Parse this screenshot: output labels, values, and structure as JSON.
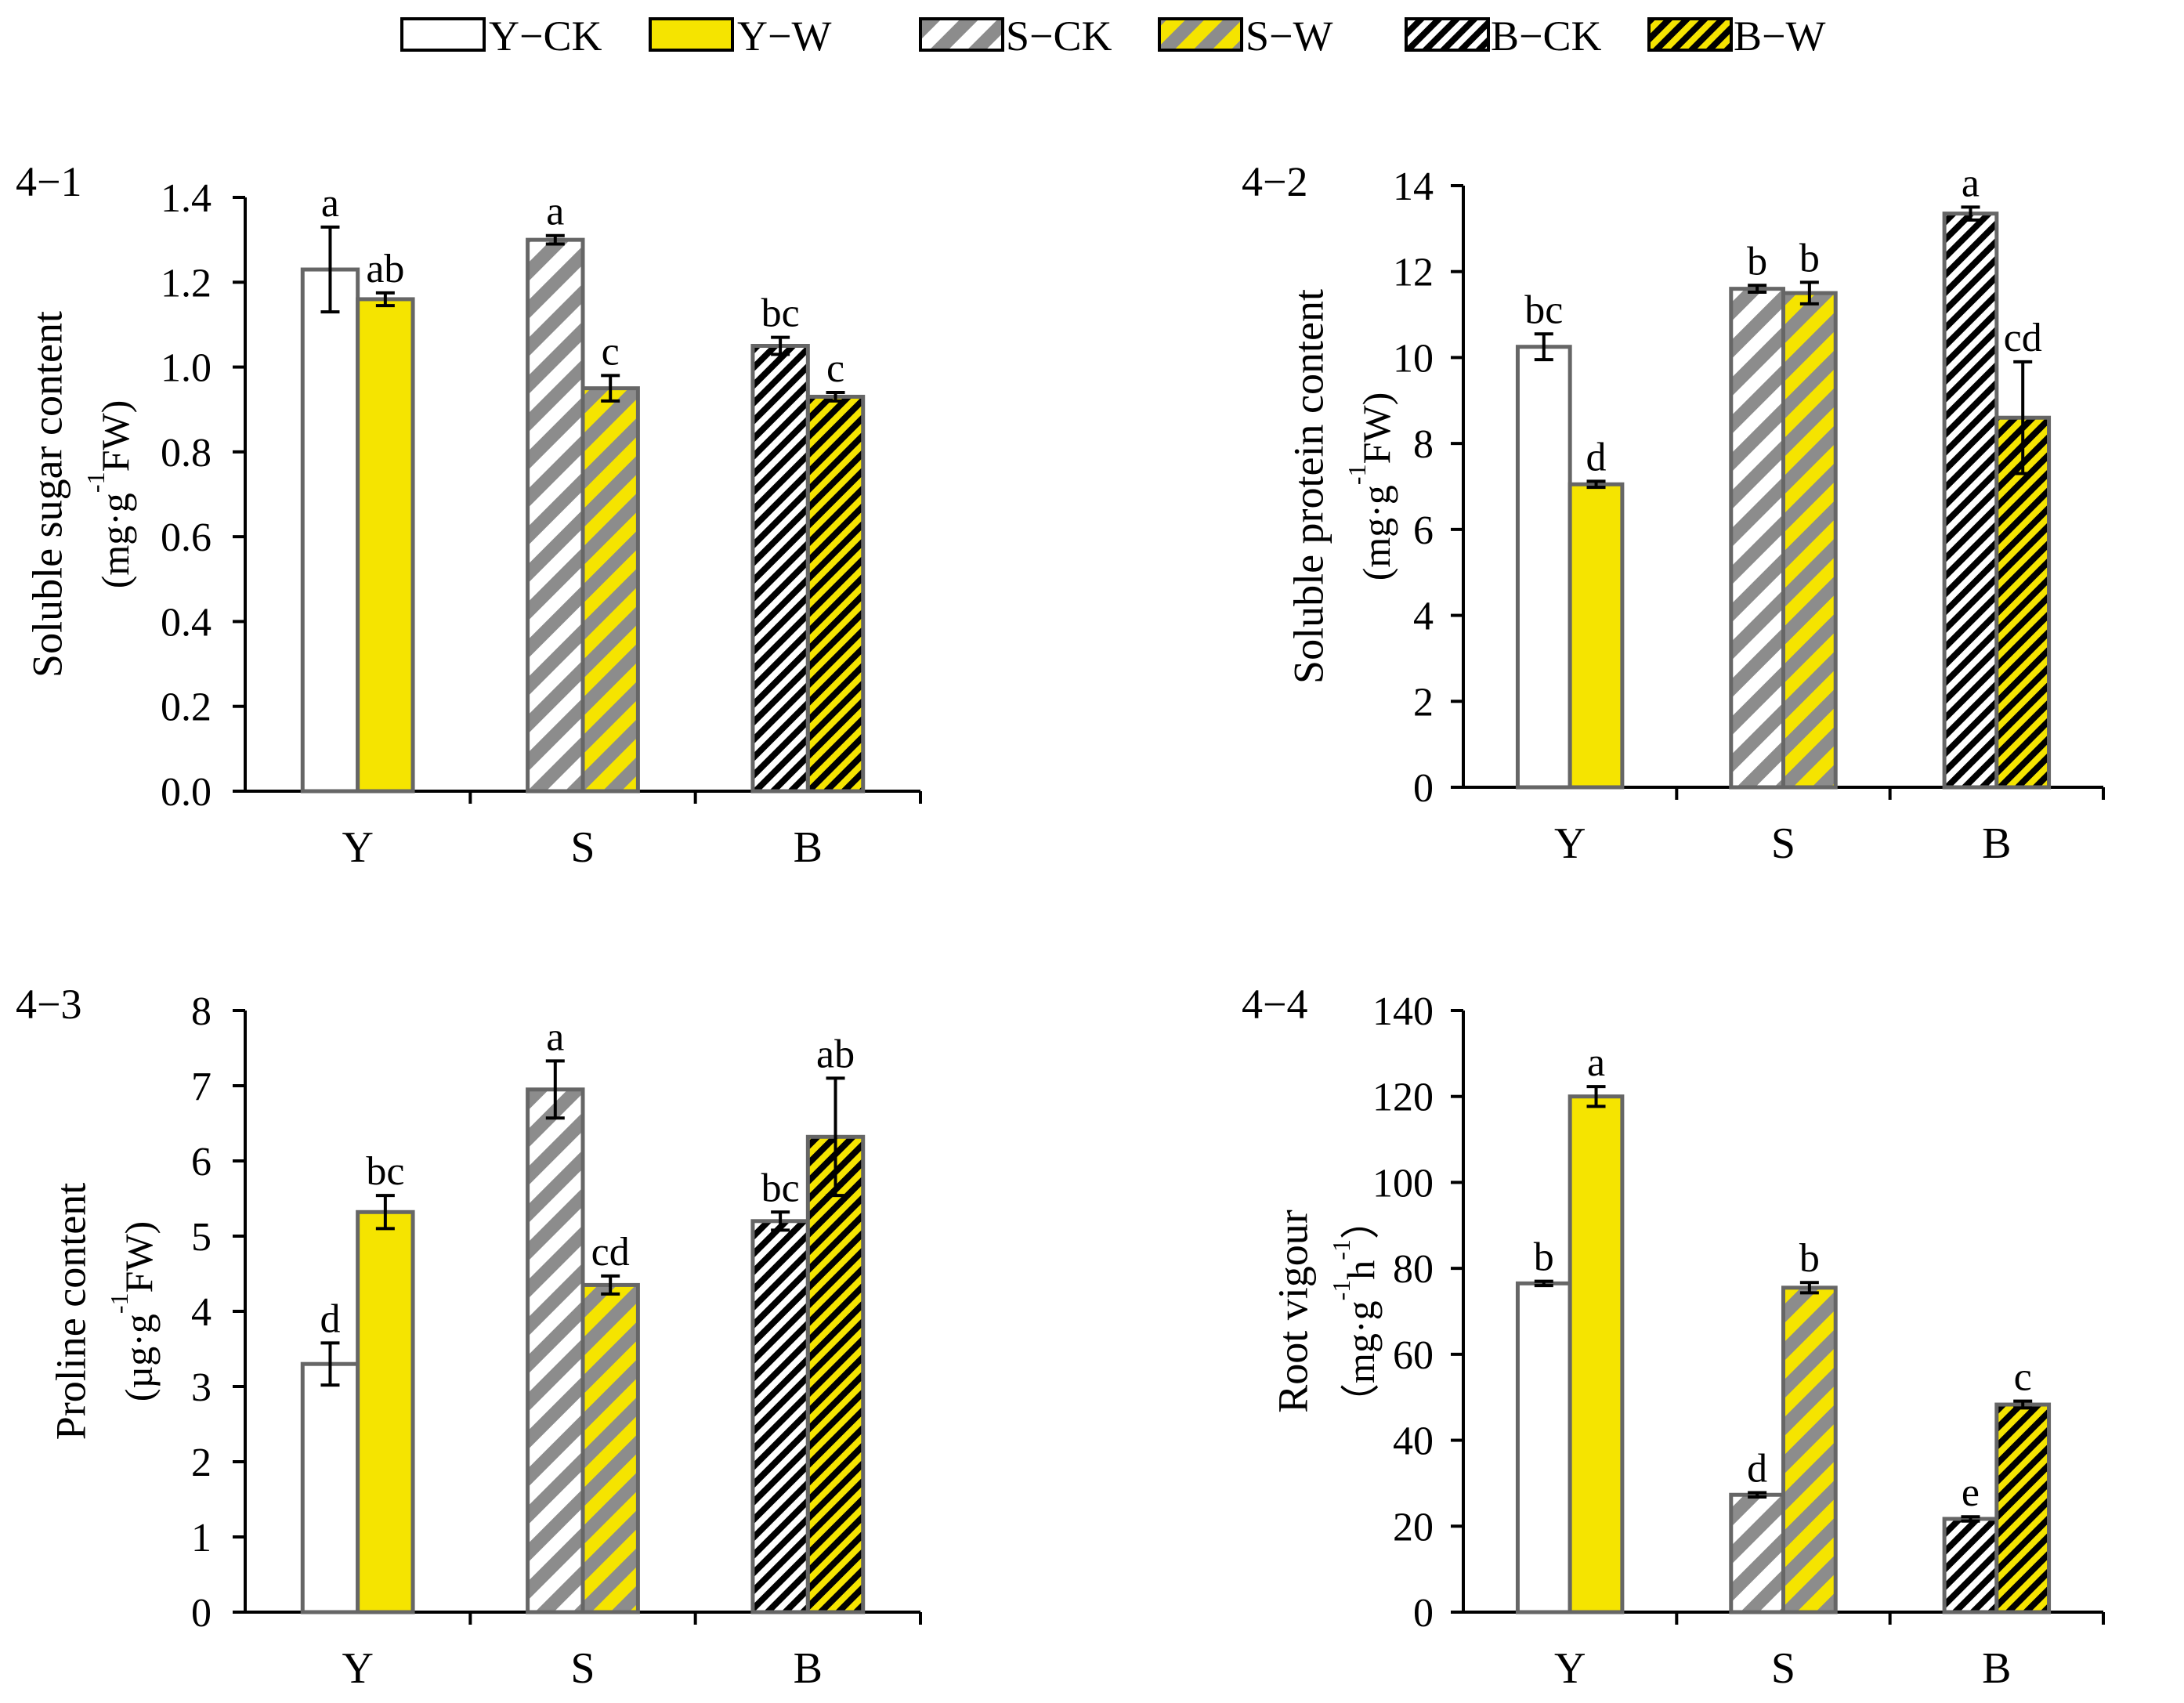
{
  "legend": {
    "entries": [
      {
        "label": "Y−CK",
        "cultivar": "Y",
        "treatment": "CK"
      },
      {
        "label": "Y−W",
        "cultivar": "Y",
        "treatment": "W"
      },
      {
        "label": "S−CK",
        "cultivar": "S",
        "treatment": "CK"
      },
      {
        "label": "S−W",
        "cultivar": "S",
        "treatment": "W"
      },
      {
        "label": "B−CK",
        "cultivar": "B",
        "treatment": "CK"
      },
      {
        "label": "B−W",
        "cultivar": "B",
        "treatment": "W"
      }
    ]
  },
  "colors": {
    "ck_fill": "#ffffff",
    "w_fill": "#f5e400",
    "s_stripe": "#8c8c8c",
    "b_stripe": "#000000",
    "bar_outline": "#666666",
    "axis": "#000000"
  },
  "chart_data": [
    {
      "panel_label": "4−1",
      "type": "bar",
      "categories": [
        "Y",
        "S",
        "B"
      ],
      "series": [
        {
          "name": "CK",
          "values": [
            1.23,
            1.3,
            1.05
          ],
          "errors": [
            0.1,
            0.01,
            0.02
          ],
          "letters": [
            "a",
            "a",
            "bc"
          ]
        },
        {
          "name": "W",
          "values": [
            1.16,
            0.95,
            0.93
          ],
          "errors": [
            0.015,
            0.03,
            0.01
          ],
          "letters": [
            "ab",
            "c",
            "c"
          ]
        }
      ],
      "ylabel": "Soluble sugar content",
      "ylabel_unit": "(mg·g",
      "ylabel_unit_sup": "-1",
      "ylabel_unit_tail": "FW)",
      "ylim": [
        0,
        1.4
      ],
      "yticks": [
        "0.0",
        "0.2",
        "0.4",
        "0.6",
        "0.8",
        "1.0",
        "1.2",
        "1.4"
      ],
      "ytick_values": [
        0,
        0.2,
        0.4,
        0.6,
        0.8,
        1.0,
        1.2,
        1.4
      ]
    },
    {
      "panel_label": "4−2",
      "type": "bar",
      "categories": [
        "Y",
        "S",
        "B"
      ],
      "series": [
        {
          "name": "CK",
          "values": [
            10.25,
            11.6,
            13.35
          ],
          "errors": [
            0.3,
            0.08,
            0.15
          ],
          "letters": [
            "bc",
            "b",
            "a"
          ]
        },
        {
          "name": "W",
          "values": [
            7.05,
            11.5,
            8.6
          ],
          "errors": [
            0.07,
            0.25,
            1.3
          ],
          "letters": [
            "d",
            "b",
            "cd"
          ]
        }
      ],
      "ylabel": "Soluble protein content",
      "ylabel_unit": "(mg·g",
      "ylabel_unit_sup": "-1",
      "ylabel_unit_tail": "FW)",
      "ylim": [
        0,
        14
      ],
      "yticks": [
        "0",
        "2",
        "4",
        "6",
        "8",
        "10",
        "12",
        "14"
      ],
      "ytick_values": [
        0,
        2,
        4,
        6,
        8,
        10,
        12,
        14
      ]
    },
    {
      "panel_label": "4−3",
      "type": "bar",
      "categories": [
        "Y",
        "S",
        "B"
      ],
      "series": [
        {
          "name": "CK",
          "values": [
            3.3,
            6.95,
            5.2
          ],
          "errors": [
            0.28,
            0.38,
            0.12
          ],
          "letters": [
            "d",
            "a",
            "bc"
          ]
        },
        {
          "name": "W",
          "values": [
            5.32,
            4.35,
            6.32
          ],
          "errors": [
            0.22,
            0.12,
            0.78
          ],
          "letters": [
            "bc",
            "cd",
            "ab"
          ]
        }
      ],
      "ylabel": "Proline content",
      "ylabel_unit": "(µg·g",
      "ylabel_unit_sup": "-1",
      "ylabel_unit_tail": "FW)",
      "ylim": [
        0,
        8
      ],
      "yticks": [
        "0",
        "1",
        "2",
        "3",
        "4",
        "5",
        "6",
        "7",
        "8"
      ],
      "ytick_values": [
        0,
        1,
        2,
        3,
        4,
        5,
        6,
        7,
        8
      ]
    },
    {
      "panel_label": "4−4",
      "type": "bar",
      "categories": [
        "Y",
        "S",
        "B"
      ],
      "series": [
        {
          "name": "CK",
          "values": [
            76.5,
            27.3,
            21.7
          ],
          "errors": [
            0.5,
            0.5,
            0.5
          ],
          "letters": [
            "b",
            "d",
            "e"
          ]
        },
        {
          "name": "W",
          "values": [
            120,
            75.5,
            48.3
          ],
          "errors": [
            2.3,
            1.2,
            0.8
          ],
          "letters": [
            "a",
            "b",
            "c"
          ]
        }
      ],
      "ylabel": "Root vigour",
      "ylabel_unit": "（mg·g",
      "ylabel_unit_sup": "-1",
      "ylabel_unit_mid": "h",
      "ylabel_unit_sup2": "-1",
      "ylabel_unit_tail": "）",
      "ylim": [
        0,
        140
      ],
      "yticks": [
        "0",
        "20",
        "40",
        "60",
        "80",
        "100",
        "120",
        "140"
      ],
      "ytick_values": [
        0,
        20,
        40,
        60,
        80,
        100,
        120,
        140
      ]
    }
  ]
}
